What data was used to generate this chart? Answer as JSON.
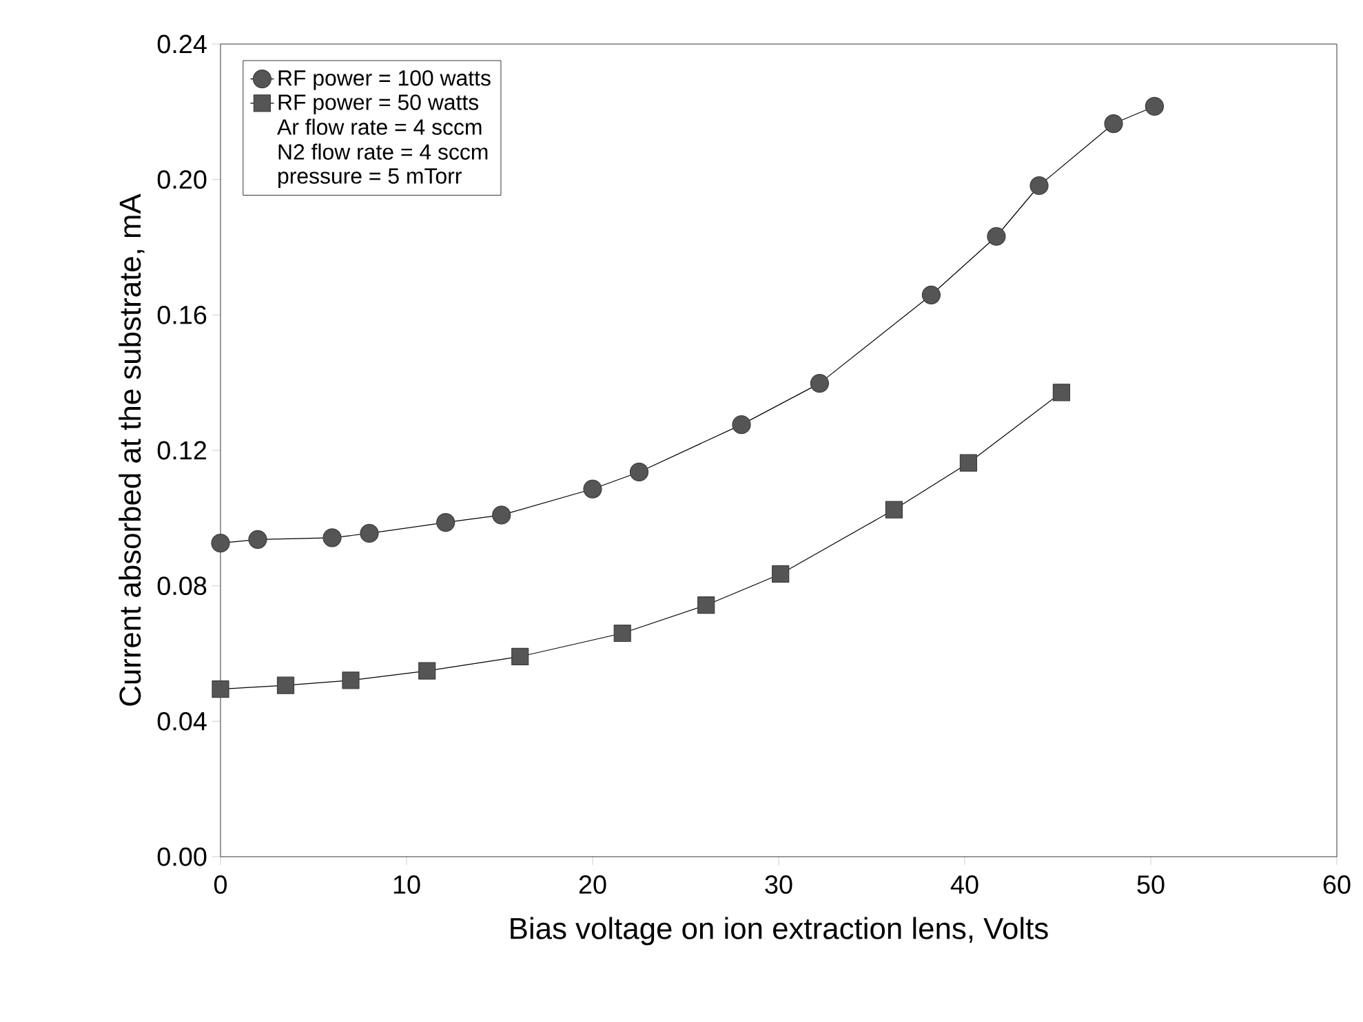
{
  "chart_data": {
    "type": "line",
    "xlabel": "Bias voltage on ion extraction lens, Volts",
    "ylabel": "Current absorbed at the substrate, mA",
    "xlim": [
      0,
      60
    ],
    "xticks": [
      0,
      10,
      20,
      30,
      40,
      50,
      60
    ],
    "ylim": [
      0,
      0.24
    ],
    "yticks": [
      {
        "value": 0,
        "label": "0.00"
      },
      {
        "value": 0.04,
        "label": "0.04"
      },
      {
        "value": 0.08,
        "label": "0.08"
      },
      {
        "value": 0.12,
        "label": "0.12"
      },
      {
        "value": 0.16,
        "label": "0.16"
      },
      {
        "value": 0.2,
        "label": "0.20"
      },
      {
        "value": 0.24,
        "label": "0.24"
      }
    ],
    "grid": false,
    "legend": "top left",
    "line_style": "solid",
    "series": [
      {
        "name": "RF power = 100 watts",
        "color": "#555555",
        "marker": "circle",
        "x": [
          0,
          2,
          6,
          8,
          12.1,
          15.1,
          20,
          22.5,
          28,
          32.2,
          38.2,
          41.7,
          44,
          48,
          50.2
        ],
        "values": [
          0.0926,
          0.0937,
          0.0942,
          0.0955,
          0.0987,
          0.1009,
          0.1086,
          0.1136,
          0.1276,
          0.1398,
          0.1659,
          0.1832,
          0.1982,
          0.2165,
          0.2216
        ]
      },
      {
        "name": "RF power = 50 watts",
        "color": "#555555",
        "marker": "square",
        "x": [
          0,
          3.5,
          7,
          11.1,
          16.1,
          21.6,
          26.1,
          30.1,
          36.2,
          40.2,
          45.2
        ],
        "values": [
          0.0495,
          0.0506,
          0.0521,
          0.0549,
          0.0591,
          0.066,
          0.0743,
          0.0835,
          0.1025,
          0.1163,
          0.1371
        ]
      }
    ],
    "annotations": [
      "Ar flow rate = 4 sccm",
      "N2 flow rate = 4 sccm",
      "pressure = 5 mTorr"
    ]
  }
}
